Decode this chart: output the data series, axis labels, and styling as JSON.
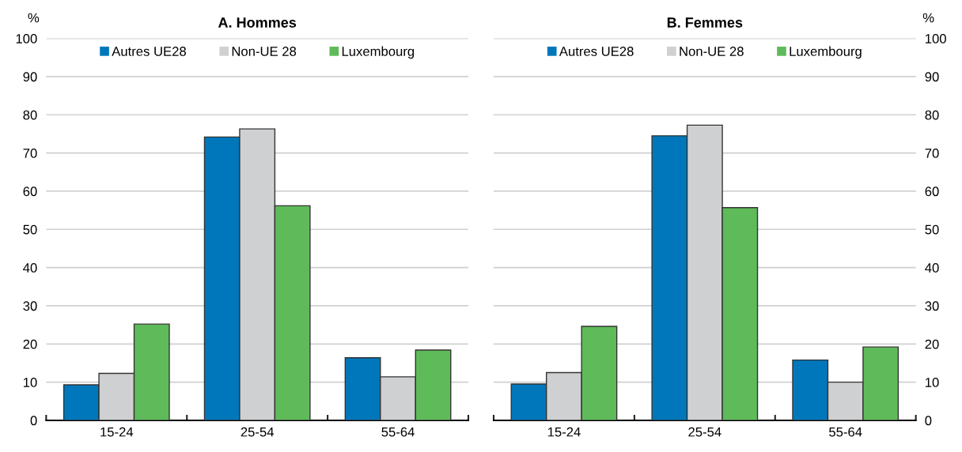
{
  "chart_data": [
    {
      "type": "bar",
      "title": "A. Hommes",
      "ylabel": "%",
      "categories": [
        "15-24",
        "25-54",
        "55-64"
      ],
      "series": [
        {
          "name": "Autres UE28",
          "color": "#0077bb",
          "values": [
            9.3,
            74.2,
            16.4
          ]
        },
        {
          "name": "Non-UE 28",
          "color": "#cfd0d2",
          "values": [
            12.3,
            76.3,
            11.4
          ]
        },
        {
          "name": "Luxembourg",
          "color": "#5fbb5a",
          "values": [
            25.2,
            56.2,
            18.4
          ]
        }
      ],
      "ylim": [
        0,
        100
      ],
      "yticks": [
        0,
        10,
        20,
        30,
        40,
        50,
        60,
        70,
        80,
        90,
        100
      ],
      "grid": "y",
      "legend": "top"
    },
    {
      "type": "bar",
      "title": "B. Femmes",
      "ylabel": "%",
      "categories": [
        "15-24",
        "25-54",
        "55-64"
      ],
      "series": [
        {
          "name": "Autres UE28",
          "color": "#0077bb",
          "values": [
            9.5,
            74.5,
            15.8
          ]
        },
        {
          "name": "Non-UE 28",
          "color": "#cfd0d2",
          "values": [
            12.5,
            77.3,
            10.0
          ]
        },
        {
          "name": "Luxembourg",
          "color": "#5fbb5a",
          "values": [
            24.6,
            55.7,
            19.2
          ]
        }
      ],
      "ylim": [
        0,
        100
      ],
      "yticks": [
        0,
        10,
        20,
        30,
        40,
        50,
        60,
        70,
        80,
        90,
        100
      ],
      "grid": "y",
      "legend": "top"
    }
  ]
}
